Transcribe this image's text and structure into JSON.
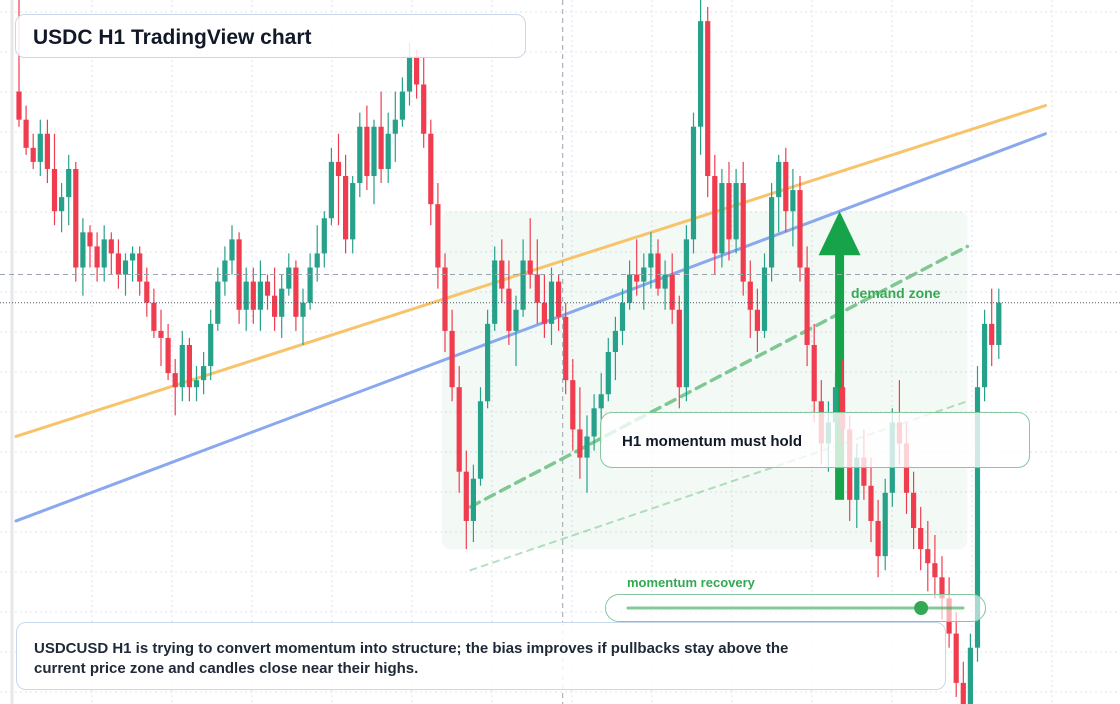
{
  "title": "USDC H1 TradingView chart",
  "note": "USDCUSD H1 is trying to convert momentum into structure; the bias improves if pullbacks stay above the current price zone and candles close near their highs.",
  "callout": "H1 momentum must hold",
  "zone_label": "demand zone",
  "meter": {
    "label": "momentum recovery",
    "value": 0.875
  },
  "colors": {
    "up": "#26a18a",
    "down": "#ef3d4f",
    "upper_trend": "#f7c36b",
    "lower_trend": "#8aa8ee",
    "zone": "#34a853",
    "grid": "#dfe3ea"
  },
  "chart_data": {
    "type": "candlestick",
    "title": "USDC H1 TradingView chart",
    "ylim": [
      0.9995,
      1.0005
    ],
    "grid": true,
    "candles": [
      [
        1.00037,
        1.0005,
        1.00032,
        1.00033
      ],
      [
        1.00033,
        1.00035,
        1.00028,
        1.00029
      ],
      [
        1.00029,
        1.00031,
        1.00026,
        1.00027
      ],
      [
        1.00027,
        1.00033,
        1.00025,
        1.00031
      ],
      [
        1.00031,
        1.00033,
        1.00024,
        1.00026
      ],
      [
        1.00026,
        1.00031,
        1.00018,
        1.0002
      ],
      [
        1.0002,
        1.00024,
        1.00017,
        1.00022
      ],
      [
        1.00022,
        1.00028,
        1.00018,
        1.00026
      ],
      [
        1.00026,
        1.00027,
        1.0001,
        1.00012
      ],
      [
        1.00012,
        1.00019,
        1.00008,
        1.00017
      ],
      [
        1.00017,
        1.00018,
        1.00012,
        1.00015
      ],
      [
        1.00015,
        1.00017,
        1.0001,
        1.00012
      ],
      [
        1.00012,
        1.00018,
        1.0001,
        1.00016
      ],
      [
        1.00016,
        1.00017,
        1.00011,
        1.00014
      ],
      [
        1.00014,
        1.00016,
        1.00009,
        1.00011
      ],
      [
        1.00011,
        1.00014,
        1.00008,
        1.00013
      ],
      [
        1.00013,
        1.00015,
        1.0001,
        1.00014
      ],
      [
        1.00014,
        1.00015,
        1.00008,
        1.0001
      ],
      [
        1.0001,
        1.00012,
        1.00005,
        1.00007
      ],
      [
        1.00007,
        1.00009,
        1.00002,
        1.00003
      ],
      [
        1.00003,
        1.00006,
        0.99998,
        1.00002
      ],
      [
        1.00002,
        1.00004,
        0.99996,
        0.99997
      ],
      [
        0.99997,
        0.99999,
        0.99991,
        0.99995
      ],
      [
        0.99995,
        1.00003,
        0.99993,
        1.00001
      ],
      [
        1.00001,
        1.00002,
        0.99993,
        0.99995
      ],
      [
        0.99995,
        0.99998,
        0.99993,
        0.99996
      ],
      [
        0.99996,
        1.0,
        0.99994,
        0.99998
      ],
      [
        0.99998,
        1.00006,
        0.99996,
        1.00004
      ],
      [
        1.00004,
        1.00012,
        1.00003,
        1.0001
      ],
      [
        1.0001,
        1.00015,
        1.00008,
        1.00013
      ],
      [
        1.00013,
        1.00018,
        1.00011,
        1.00016
      ],
      [
        1.00016,
        1.00017,
        1.00004,
        1.00006
      ],
      [
        1.00006,
        1.00012,
        1.00003,
        1.0001
      ],
      [
        1.0001,
        1.00012,
        1.00004,
        1.00006
      ],
      [
        1.00006,
        1.00013,
        1.00003,
        1.0001
      ],
      [
        1.0001,
        1.00011,
        1.00006,
        1.00008
      ],
      [
        1.00008,
        1.00012,
        1.00003,
        1.00005
      ],
      [
        1.00005,
        1.00011,
        1.00002,
        1.00009
      ],
      [
        1.00009,
        1.00014,
        1.00008,
        1.00012
      ],
      [
        1.00012,
        1.00013,
        1.00003,
        1.00005
      ],
      [
        1.00005,
        1.00009,
        1.00001,
        1.00007
      ],
      [
        1.00007,
        1.00014,
        1.00006,
        1.00012
      ],
      [
        1.00012,
        1.00018,
        1.0001,
        1.00014
      ],
      [
        1.00014,
        1.0002,
        1.00012,
        1.00019
      ],
      [
        1.00019,
        1.00029,
        1.00018,
        1.00027
      ],
      [
        1.00027,
        1.00031,
        1.00018,
        1.00025
      ],
      [
        1.00025,
        1.00028,
        1.00014,
        1.00016
      ],
      [
        1.00016,
        1.00025,
        1.00014,
        1.00024
      ],
      [
        1.00024,
        1.00034,
        1.00022,
        1.00032
      ],
      [
        1.00032,
        1.00035,
        1.00023,
        1.00025
      ],
      [
        1.00025,
        1.00033,
        1.00021,
        1.00032
      ],
      [
        1.00032,
        1.00037,
        1.00024,
        1.00026
      ],
      [
        1.00026,
        1.00034,
        1.00024,
        1.00031
      ],
      [
        1.00031,
        1.00037,
        1.00027,
        1.00033
      ],
      [
        1.00033,
        1.00039,
        1.00032,
        1.00037
      ],
      [
        1.00037,
        1.00044,
        1.00035,
        1.00042
      ],
      [
        1.00042,
        1.00043,
        1.00036,
        1.00038
      ],
      [
        1.00038,
        1.00042,
        1.00029,
        1.00031
      ],
      [
        1.00031,
        1.00033,
        1.00018,
        1.00021
      ],
      [
        1.00021,
        1.00024,
        1.00009,
        1.00012
      ],
      [
        1.00012,
        1.00014,
        1.0,
        1.00003
      ],
      [
        1.00003,
        1.00006,
        0.99993,
        0.99995
      ],
      [
        0.99995,
        0.99998,
        0.9998,
        0.99983
      ],
      [
        0.99983,
        0.99986,
        0.99972,
        0.99976
      ],
      [
        0.99976,
        0.99984,
        0.99973,
        0.99982
      ],
      [
        0.99982,
        0.99995,
        0.99981,
        0.99993
      ],
      [
        0.99993,
        1.00006,
        0.99992,
        1.00004
      ],
      [
        1.00004,
        1.00015,
        1.00003,
        1.00013
      ],
      [
        1.00013,
        1.00016,
        1.00007,
        1.00009
      ],
      [
        1.00009,
        1.00013,
        1.00001,
        1.00003
      ],
      [
        1.00003,
        1.00008,
        0.99998,
        1.00006
      ],
      [
        1.00006,
        1.00016,
        1.00005,
        1.00013
      ],
      [
        1.00013,
        1.00019,
        1.00009,
        1.00011
      ],
      [
        1.00011,
        1.00016,
        1.00004,
        1.00007
      ],
      [
        1.00007,
        1.00011,
        1.00002,
        1.00004
      ],
      [
        1.00004,
        1.00012,
        1.00001,
        1.0001
      ],
      [
        1.0001,
        1.00011,
        1.00003,
        1.00005
      ],
      [
        1.00005,
        1.00007,
        0.99994,
        0.99996
      ],
      [
        0.99996,
        0.99999,
        0.99986,
        0.99989
      ],
      [
        0.99989,
        0.99995,
        0.99982,
        0.99985
      ],
      [
        0.99985,
        0.99991,
        0.9998,
        0.99988
      ],
      [
        0.99988,
        0.99994,
        0.99986,
        0.99992
      ],
      [
        0.99992,
        0.99997,
        0.99987,
        0.99994
      ],
      [
        0.99994,
        1.00002,
        0.99993,
        1.0
      ],
      [
        1.0,
        1.00005,
        0.99996,
        1.00003
      ],
      [
        1.00003,
        1.00009,
        1.00001,
        1.00007
      ],
      [
        1.00007,
        1.00013,
        1.00006,
        1.00011
      ],
      [
        1.00011,
        1.00016,
        1.00008,
        1.0001
      ],
      [
        1.0001,
        1.00014,
        1.00006,
        1.00012
      ],
      [
        1.00012,
        1.00017,
        1.00009,
        1.00014
      ],
      [
        1.00014,
        1.00016,
        1.00008,
        1.00009
      ],
      [
        1.00009,
        1.00013,
        1.00006,
        1.00011
      ],
      [
        1.00011,
        1.00014,
        1.00004,
        1.00006
      ],
      [
        1.00006,
        1.00008,
        0.99992,
        0.99995
      ],
      [
        0.99995,
        1.00018,
        0.99993,
        1.00016
      ],
      [
        1.00016,
        1.00034,
        1.00014,
        1.00032
      ],
      [
        1.00032,
        1.00052,
        1.00028,
        1.00047
      ],
      [
        1.00047,
        1.00049,
        1.00022,
        1.00025
      ],
      [
        1.00025,
        1.00028,
        1.00011,
        1.00014
      ],
      [
        1.00014,
        1.00026,
        1.00012,
        1.00024
      ],
      [
        1.00024,
        1.00027,
        1.00013,
        1.00016
      ],
      [
        1.00016,
        1.00026,
        1.00014,
        1.00024
      ],
      [
        1.00024,
        1.00027,
        1.00008,
        1.0001
      ],
      [
        1.0001,
        1.00013,
        1.00002,
        1.00006
      ],
      [
        1.00006,
        1.00009,
        1.0,
        1.00003
      ],
      [
        1.00003,
        1.00014,
        1.00002,
        1.00012
      ],
      [
        1.00012,
        1.00024,
        1.0001,
        1.00022
      ],
      [
        1.00022,
        1.00028,
        1.00017,
        1.00027
      ],
      [
        1.00027,
        1.00029,
        1.00017,
        1.0002
      ],
      [
        1.0002,
        1.00026,
        1.00015,
        1.00023
      ],
      [
        1.00023,
        1.00025,
        1.0001,
        1.00012
      ],
      [
        1.00012,
        1.00015,
        0.99998,
        1.00001
      ],
      [
        1.00001,
        1.00004,
        0.9999,
        0.99993
      ],
      [
        0.99993,
        0.99996,
        0.99984,
        0.99987
      ],
      [
        0.99987,
        0.99993,
        0.99983,
        0.9999
      ],
      [
        0.9999,
        0.99997,
        0.99987,
        0.99995
      ],
      [
        0.99995,
        0.99999,
        0.99987,
        0.99989
      ],
      [
        0.99989,
        0.99991,
        0.99976,
        0.99979
      ],
      [
        0.99979,
        0.99987,
        0.99975,
        0.99985
      ],
      [
        0.99985,
        0.99989,
        0.99979,
        0.99981
      ],
      [
        0.99981,
        0.99985,
        0.99973,
        0.99976
      ],
      [
        0.99976,
        0.99979,
        0.99968,
        0.99971
      ],
      [
        0.99971,
        0.99982,
        0.99969,
        0.9998
      ],
      [
        0.9998,
        0.99992,
        0.99978,
        0.9999
      ],
      [
        0.9999,
        0.99996,
        0.99984,
        0.99987
      ],
      [
        0.99987,
        0.9999,
        0.99977,
        0.9998
      ],
      [
        0.9998,
        0.99983,
        0.99972,
        0.99975
      ],
      [
        0.99975,
        0.99978,
        0.99969,
        0.99972
      ],
      [
        0.99972,
        0.99976,
        0.99966,
        0.9997
      ],
      [
        0.9997,
        0.99974,
        0.99965,
        0.99968
      ],
      [
        0.99968,
        0.99971,
        0.99962,
        0.99965
      ],
      [
        0.99965,
        0.99968,
        0.99958,
        0.9996
      ],
      [
        0.9996,
        0.99963,
        0.99951,
        0.99953
      ],
      [
        0.99953,
        0.99956,
        0.99945,
        0.99947
      ],
      [
        0.99947,
        0.9996,
        0.99945,
        0.99958
      ],
      [
        0.99958,
        0.99998,
        0.99956,
        0.99995
      ],
      [
        0.99995,
        1.00006,
        0.99993,
        1.00004
      ],
      [
        1.00004,
        1.00009,
        0.99998,
        1.00001
      ],
      [
        1.00001,
        1.00009,
        0.99999,
        1.00007
      ]
    ],
    "upper_trend": [
      [
        0,
        0.99988
      ],
      [
        145,
        1.00035
      ]
    ],
    "lower_trend": [
      [
        0,
        0.99976
      ],
      [
        145,
        1.00031
      ]
    ],
    "zone_guides": [
      [
        [
          64,
          0.99978
        ],
        [
          134,
          1.00015
        ]
      ],
      [
        [
          64,
          0.99969
        ],
        [
          134,
          0.99993
        ]
      ]
    ],
    "zone": {
      "from": 60,
      "to": 134,
      "low": 0.99972,
      "high": 1.0002
    },
    "zone_arrow": {
      "at": 116,
      "from": 0.99979,
      "to": 1.0002
    },
    "crosshair": {
      "x": 77,
      "price": 1.00011
    },
    "current_price": 1.00007
  }
}
